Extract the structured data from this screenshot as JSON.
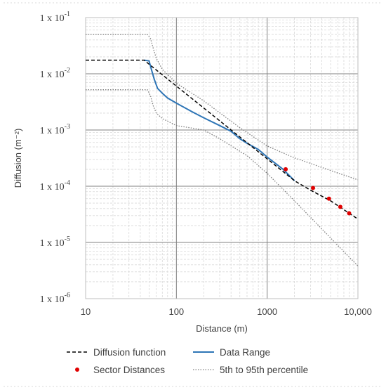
{
  "chart_data": {
    "type": "line",
    "title": "",
    "xlabel": "Distance (m)",
    "ylabel": "Diffusion (m⁻²)",
    "x_scale": "log",
    "y_scale": "log",
    "xlim": [
      10,
      10000
    ],
    "ylim": [
      1e-06,
      0.1
    ],
    "grid": true,
    "legend_position": "bottom",
    "x_tick_labels": [
      {
        "value": 10,
        "label": "10"
      },
      {
        "value": 100,
        "label": "100"
      },
      {
        "value": 1000,
        "label": "1000"
      },
      {
        "value": 10000,
        "label": "10,000"
      }
    ],
    "y_tick_labels": [
      {
        "value": 0.1,
        "base": "1 x 10",
        "exp": "-1"
      },
      {
        "value": 0.01,
        "base": "1 x 10",
        "exp": "-2"
      },
      {
        "value": 0.001,
        "base": "1 x 10",
        "exp": "-3"
      },
      {
        "value": 0.0001,
        "base": "1 x 10",
        "exp": "-4"
      },
      {
        "value": 1e-05,
        "base": "1 x 10",
        "exp": "-5"
      },
      {
        "value": 1e-06,
        "base": "1 x 10",
        "exp": "-6"
      }
    ],
    "series": [
      {
        "name": "Diffusion function",
        "style": "dashed",
        "color": "#000000",
        "x": [
          10,
          44,
          2000,
          3000,
          5000,
          10000
        ],
        "y": [
          0.0175,
          0.0175,
          0.000125,
          8.5e-05,
          5.5e-05,
          2.6e-05
        ]
      },
      {
        "name": "Data Range",
        "style": "solid",
        "color": "#2e75b6",
        "x": [
          44,
          50,
          53,
          57,
          62,
          70,
          80,
          100,
          150,
          200,
          300,
          400,
          500,
          600,
          800,
          1000,
          1500,
          2000
        ],
        "y": [
          0.0175,
          0.017,
          0.012,
          0.008,
          0.0055,
          0.0045,
          0.0037,
          0.003,
          0.0021,
          0.00165,
          0.0012,
          0.00095,
          0.0007,
          0.00058,
          0.00045,
          0.00033,
          0.0002,
          0.000125
        ]
      },
      {
        "name": "Sector Distances",
        "style": "points",
        "color": "#e00000",
        "x": [
          1600,
          3200,
          4800,
          6400,
          8000
        ],
        "y": [
          0.0002,
          9.3e-05,
          6e-05,
          4.3e-05,
          3.3e-05
        ]
      },
      {
        "name": "5th to 95th percentile",
        "style": "dotted",
        "color": "#7f7f7f",
        "x": [
          10,
          48,
          52,
          55,
          60,
          70,
          100,
          200,
          500,
          1000,
          2000,
          5000,
          10000
        ],
        "y": [
          0.05,
          0.05,
          0.042,
          0.03,
          0.019,
          0.012,
          0.0068,
          0.0033,
          0.0011,
          0.00052,
          0.00032,
          0.00019,
          0.00013
        ]
      },
      {
        "name": "5th to 95th percentile (lower)",
        "style": "dotted",
        "color": "#7f7f7f",
        "x": [
          10,
          48,
          52,
          55,
          60,
          70,
          100,
          200,
          300,
          600,
          1000,
          2000,
          3000,
          5000,
          10000
        ],
        "y": [
          0.0052,
          0.0052,
          0.004,
          0.0028,
          0.002,
          0.0016,
          0.0012,
          0.001,
          0.0007,
          0.00035,
          0.00017,
          5.5e-05,
          2.8e-05,
          1.2e-05,
          3.8e-06
        ]
      }
    ],
    "legend": [
      {
        "label": "Diffusion function",
        "style": "dashed",
        "color": "#000000"
      },
      {
        "label": "Data Range",
        "style": "solid",
        "color": "#2e75b6"
      },
      {
        "label": "Sector Distances",
        "style": "points",
        "color": "#e00000"
      },
      {
        "label": "5th to 95th percentile",
        "style": "dotted",
        "color": "#7f7f7f"
      }
    ]
  }
}
